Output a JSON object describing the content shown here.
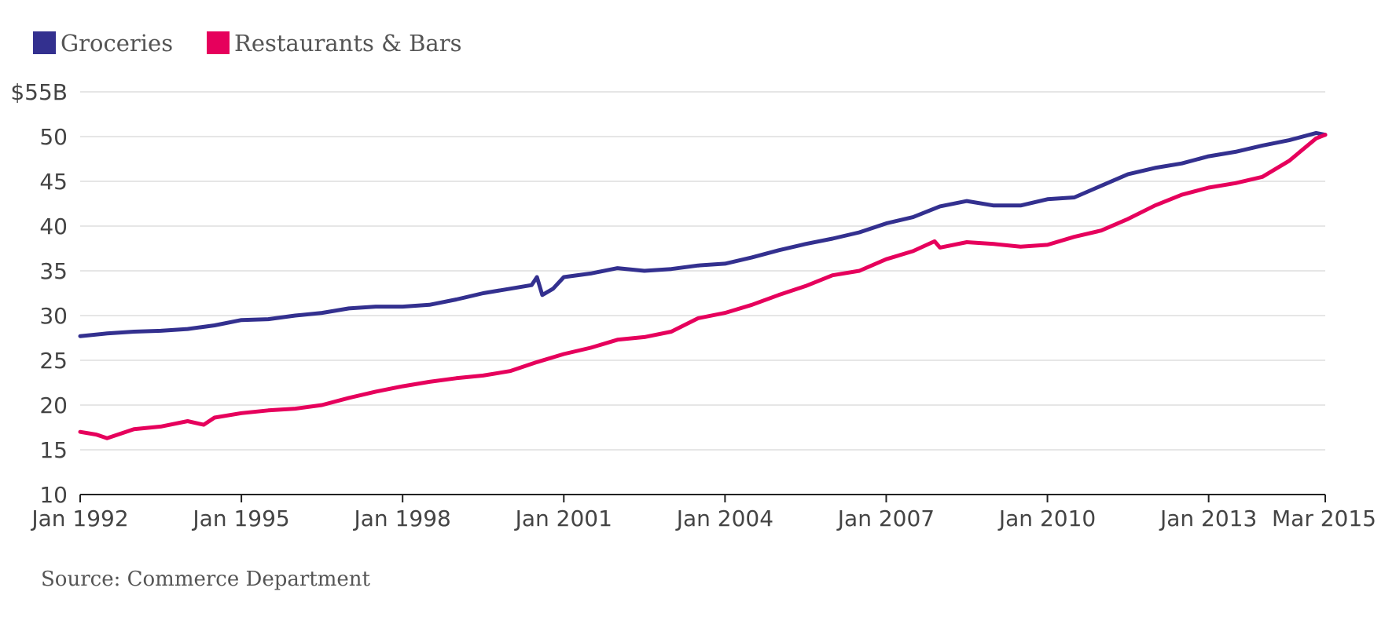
{
  "chart_data": {
    "type": "line",
    "title": "",
    "xlabel": "",
    "ylabel": "",
    "ylim": [
      10,
      55
    ],
    "xlim": [
      1992.0,
      2015.17
    ],
    "y_ticks": [
      {
        "value": 55,
        "label": "$55B"
      },
      {
        "value": 50,
        "label": "50"
      },
      {
        "value": 45,
        "label": "45"
      },
      {
        "value": 40,
        "label": "40"
      },
      {
        "value": 35,
        "label": "35"
      },
      {
        "value": 30,
        "label": "30"
      },
      {
        "value": 25,
        "label": "25"
      },
      {
        "value": 20,
        "label": "20"
      },
      {
        "value": 15,
        "label": "15"
      },
      {
        "value": 10,
        "label": "10"
      }
    ],
    "x_ticks": [
      {
        "value": 1992.0,
        "label": "Jan 1992"
      },
      {
        "value": 1995.0,
        "label": "Jan 1995"
      },
      {
        "value": 1998.0,
        "label": "Jan 1998"
      },
      {
        "value": 2001.0,
        "label": "Jan 2001"
      },
      {
        "value": 2004.0,
        "label": "Jan 2004"
      },
      {
        "value": 2007.0,
        "label": "Jan 2007"
      },
      {
        "value": 2010.0,
        "label": "Jan 2010"
      },
      {
        "value": 2013.0,
        "label": "Jan 2013"
      },
      {
        "value": 2015.17,
        "label": "Mar 2015"
      }
    ],
    "grid": true,
    "legend_position": "top-left",
    "series": [
      {
        "name": "Groceries",
        "color": "#33308f",
        "points": [
          [
            1992.0,
            27.7
          ],
          [
            1992.5,
            28.0
          ],
          [
            1993.0,
            28.2
          ],
          [
            1993.5,
            28.3
          ],
          [
            1994.0,
            28.5
          ],
          [
            1994.5,
            28.9
          ],
          [
            1995.0,
            29.5
          ],
          [
            1995.5,
            29.6
          ],
          [
            1996.0,
            30.0
          ],
          [
            1996.5,
            30.3
          ],
          [
            1997.0,
            30.8
          ],
          [
            1997.5,
            31.0
          ],
          [
            1998.0,
            31.0
          ],
          [
            1998.5,
            31.2
          ],
          [
            1999.0,
            31.8
          ],
          [
            1999.5,
            32.5
          ],
          [
            2000.0,
            33.0
          ],
          [
            2000.4,
            33.4
          ],
          [
            2000.5,
            34.3
          ],
          [
            2000.6,
            32.3
          ],
          [
            2000.8,
            33.0
          ],
          [
            2001.0,
            34.3
          ],
          [
            2001.5,
            34.7
          ],
          [
            2002.0,
            35.3
          ],
          [
            2002.5,
            35.0
          ],
          [
            2003.0,
            35.2
          ],
          [
            2003.5,
            35.6
          ],
          [
            2004.0,
            35.8
          ],
          [
            2004.5,
            36.5
          ],
          [
            2005.0,
            37.3
          ],
          [
            2005.5,
            38.0
          ],
          [
            2006.0,
            38.6
          ],
          [
            2006.5,
            39.3
          ],
          [
            2007.0,
            40.3
          ],
          [
            2007.5,
            41.0
          ],
          [
            2008.0,
            42.2
          ],
          [
            2008.5,
            42.8
          ],
          [
            2009.0,
            42.3
          ],
          [
            2009.5,
            42.3
          ],
          [
            2010.0,
            43.0
          ],
          [
            2010.5,
            43.2
          ],
          [
            2011.0,
            44.5
          ],
          [
            2011.5,
            45.8
          ],
          [
            2012.0,
            46.5
          ],
          [
            2012.5,
            47.0
          ],
          [
            2013.0,
            47.8
          ],
          [
            2013.5,
            48.3
          ],
          [
            2014.0,
            49.0
          ],
          [
            2014.5,
            49.6
          ],
          [
            2015.0,
            50.4
          ],
          [
            2015.17,
            50.2
          ]
        ]
      },
      {
        "name": "Restaurants & Bars",
        "color": "#e6005c",
        "points": [
          [
            1992.0,
            17.0
          ],
          [
            1992.3,
            16.7
          ],
          [
            1992.5,
            16.3
          ],
          [
            1993.0,
            17.3
          ],
          [
            1993.5,
            17.6
          ],
          [
            1994.0,
            18.2
          ],
          [
            1994.3,
            17.8
          ],
          [
            1994.5,
            18.6
          ],
          [
            1995.0,
            19.1
          ],
          [
            1995.5,
            19.4
          ],
          [
            1996.0,
            19.6
          ],
          [
            1996.5,
            20.0
          ],
          [
            1997.0,
            20.8
          ],
          [
            1997.5,
            21.5
          ],
          [
            1998.0,
            22.1
          ],
          [
            1998.5,
            22.6
          ],
          [
            1999.0,
            23.0
          ],
          [
            1999.5,
            23.3
          ],
          [
            2000.0,
            23.8
          ],
          [
            2000.5,
            24.8
          ],
          [
            2001.0,
            25.7
          ],
          [
            2001.5,
            26.4
          ],
          [
            2002.0,
            27.3
          ],
          [
            2002.5,
            27.6
          ],
          [
            2003.0,
            28.2
          ],
          [
            2003.5,
            29.7
          ],
          [
            2004.0,
            30.3
          ],
          [
            2004.5,
            31.2
          ],
          [
            2005.0,
            32.3
          ],
          [
            2005.5,
            33.3
          ],
          [
            2006.0,
            34.5
          ],
          [
            2006.5,
            35.0
          ],
          [
            2007.0,
            36.3
          ],
          [
            2007.5,
            37.2
          ],
          [
            2007.9,
            38.3
          ],
          [
            2008.0,
            37.6
          ],
          [
            2008.5,
            38.2
          ],
          [
            2009.0,
            38.0
          ],
          [
            2009.5,
            37.7
          ],
          [
            2010.0,
            37.9
          ],
          [
            2010.5,
            38.8
          ],
          [
            2011.0,
            39.5
          ],
          [
            2011.5,
            40.8
          ],
          [
            2012.0,
            42.3
          ],
          [
            2012.5,
            43.5
          ],
          [
            2013.0,
            44.3
          ],
          [
            2013.5,
            44.8
          ],
          [
            2014.0,
            45.5
          ],
          [
            2014.5,
            47.3
          ],
          [
            2015.0,
            49.8
          ],
          [
            2015.17,
            50.2
          ]
        ]
      }
    ],
    "legend": [
      {
        "label": "Groceries",
        "color": "#33308f"
      },
      {
        "label": "Restaurants & Bars",
        "color": "#e6005c"
      }
    ]
  },
  "source": "Source: Commerce Department"
}
